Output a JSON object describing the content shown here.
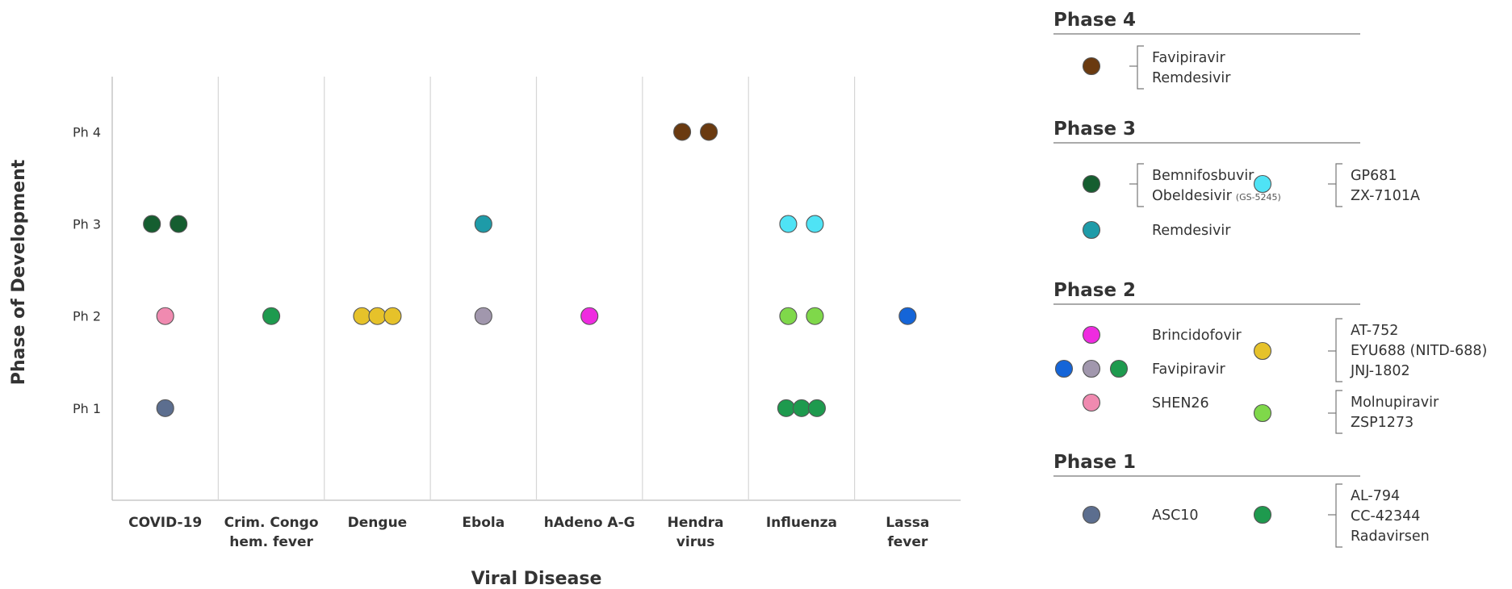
{
  "chart_data": {
    "type": "scatter",
    "xlabel": "Viral Disease",
    "ylabel": "Phase of Development",
    "categories": [
      [
        "COVID-19"
      ],
      [
        "Crim. Congo",
        "hem. fever"
      ],
      [
        "Dengue"
      ],
      [
        "Ebola"
      ],
      [
        "hAdeno A-G"
      ],
      [
        "Hendra",
        "virus"
      ],
      [
        "Influenza"
      ],
      [
        "Lassa",
        "fever"
      ]
    ],
    "y_ticks": [
      "Ph 1",
      "Ph 2",
      "Ph 3",
      "Ph 4"
    ],
    "ylim": [
      0,
      4.6
    ],
    "grid": "vertical separators between categories",
    "points": [
      {
        "category": 0,
        "phase": 3,
        "count": 2,
        "color": "#155e30"
      },
      {
        "category": 0,
        "phase": 2,
        "count": 1,
        "color": "#f08ab0"
      },
      {
        "category": 0,
        "phase": 1,
        "count": 1,
        "color": "#5c6e8f"
      },
      {
        "category": 1,
        "phase": 2,
        "count": 1,
        "color": "#1e9a4e"
      },
      {
        "category": 2,
        "phase": 2,
        "count": 3,
        "color": "#e6c22a"
      },
      {
        "category": 3,
        "phase": 3,
        "count": 1,
        "color": "#1e9ba8"
      },
      {
        "category": 3,
        "phase": 2,
        "count": 1,
        "color": "#a197ad"
      },
      {
        "category": 4,
        "phase": 2,
        "count": 1,
        "color": "#ef2be0"
      },
      {
        "category": 5,
        "phase": 4,
        "count": 2,
        "color": "#6a3a10"
      },
      {
        "category": 6,
        "phase": 3,
        "count": 2,
        "color": "#4fe3f5"
      },
      {
        "category": 6,
        "phase": 2,
        "count": 2,
        "color": "#7fd84a"
      },
      {
        "category": 6,
        "phase": 1,
        "count": 3,
        "color": "#1e9a4e"
      },
      {
        "category": 7,
        "phase": 2,
        "count": 1,
        "color": "#1565d8"
      }
    ]
  },
  "legend": {
    "groups": [
      {
        "title": "Phase 4",
        "entries": [
          {
            "colors": [
              "#6a3a10"
            ],
            "drugs": [
              "Favipiravir",
              "Remdesivir"
            ],
            "bracket": true
          }
        ]
      },
      {
        "title": "Phase 3",
        "entries": [
          {
            "colors": [
              "#155e30"
            ],
            "drugs": [
              "Bemnifosbuvir",
              "Obeldesivir"
            ],
            "note": "(GS-5245)",
            "bracket": true
          },
          {
            "colors": [
              "#4fe3f5"
            ],
            "drugs": [
              "GP681",
              "ZX-7101A"
            ],
            "bracket": true
          },
          {
            "colors": [
              "#1e9ba8"
            ],
            "drugs": [
              "Remdesivir"
            ],
            "bracket": false
          }
        ]
      },
      {
        "title": "Phase 2",
        "entries": [
          {
            "colors": [
              "#ef2be0"
            ],
            "drugs": [
              "Brincidofovir"
            ],
            "bracket": false
          },
          {
            "colors": [
              "#1565d8",
              "#a197ad",
              "#1e9a4e"
            ],
            "drugs": [
              "Favipiravir"
            ],
            "bracket": false
          },
          {
            "colors": [
              "#f08ab0"
            ],
            "drugs": [
              "SHEN26"
            ],
            "bracket": false
          },
          {
            "colors": [
              "#e6c22a"
            ],
            "drugs": [
              "AT-752",
              "EYU688 (NITD-688)",
              "JNJ-1802"
            ],
            "bracket": true
          },
          {
            "colors": [
              "#7fd84a"
            ],
            "drugs": [
              "Molnupiravir",
              "ZSP1273"
            ],
            "bracket": true
          }
        ]
      },
      {
        "title": "Phase 1",
        "entries": [
          {
            "colors": [
              "#5c6e8f"
            ],
            "drugs": [
              "ASC10"
            ],
            "bracket": false
          },
          {
            "colors": [
              "#1e9a4e"
            ],
            "drugs": [
              "AL-794",
              "CC-42344",
              "Radavirsen"
            ],
            "bracket": true
          }
        ]
      }
    ]
  }
}
